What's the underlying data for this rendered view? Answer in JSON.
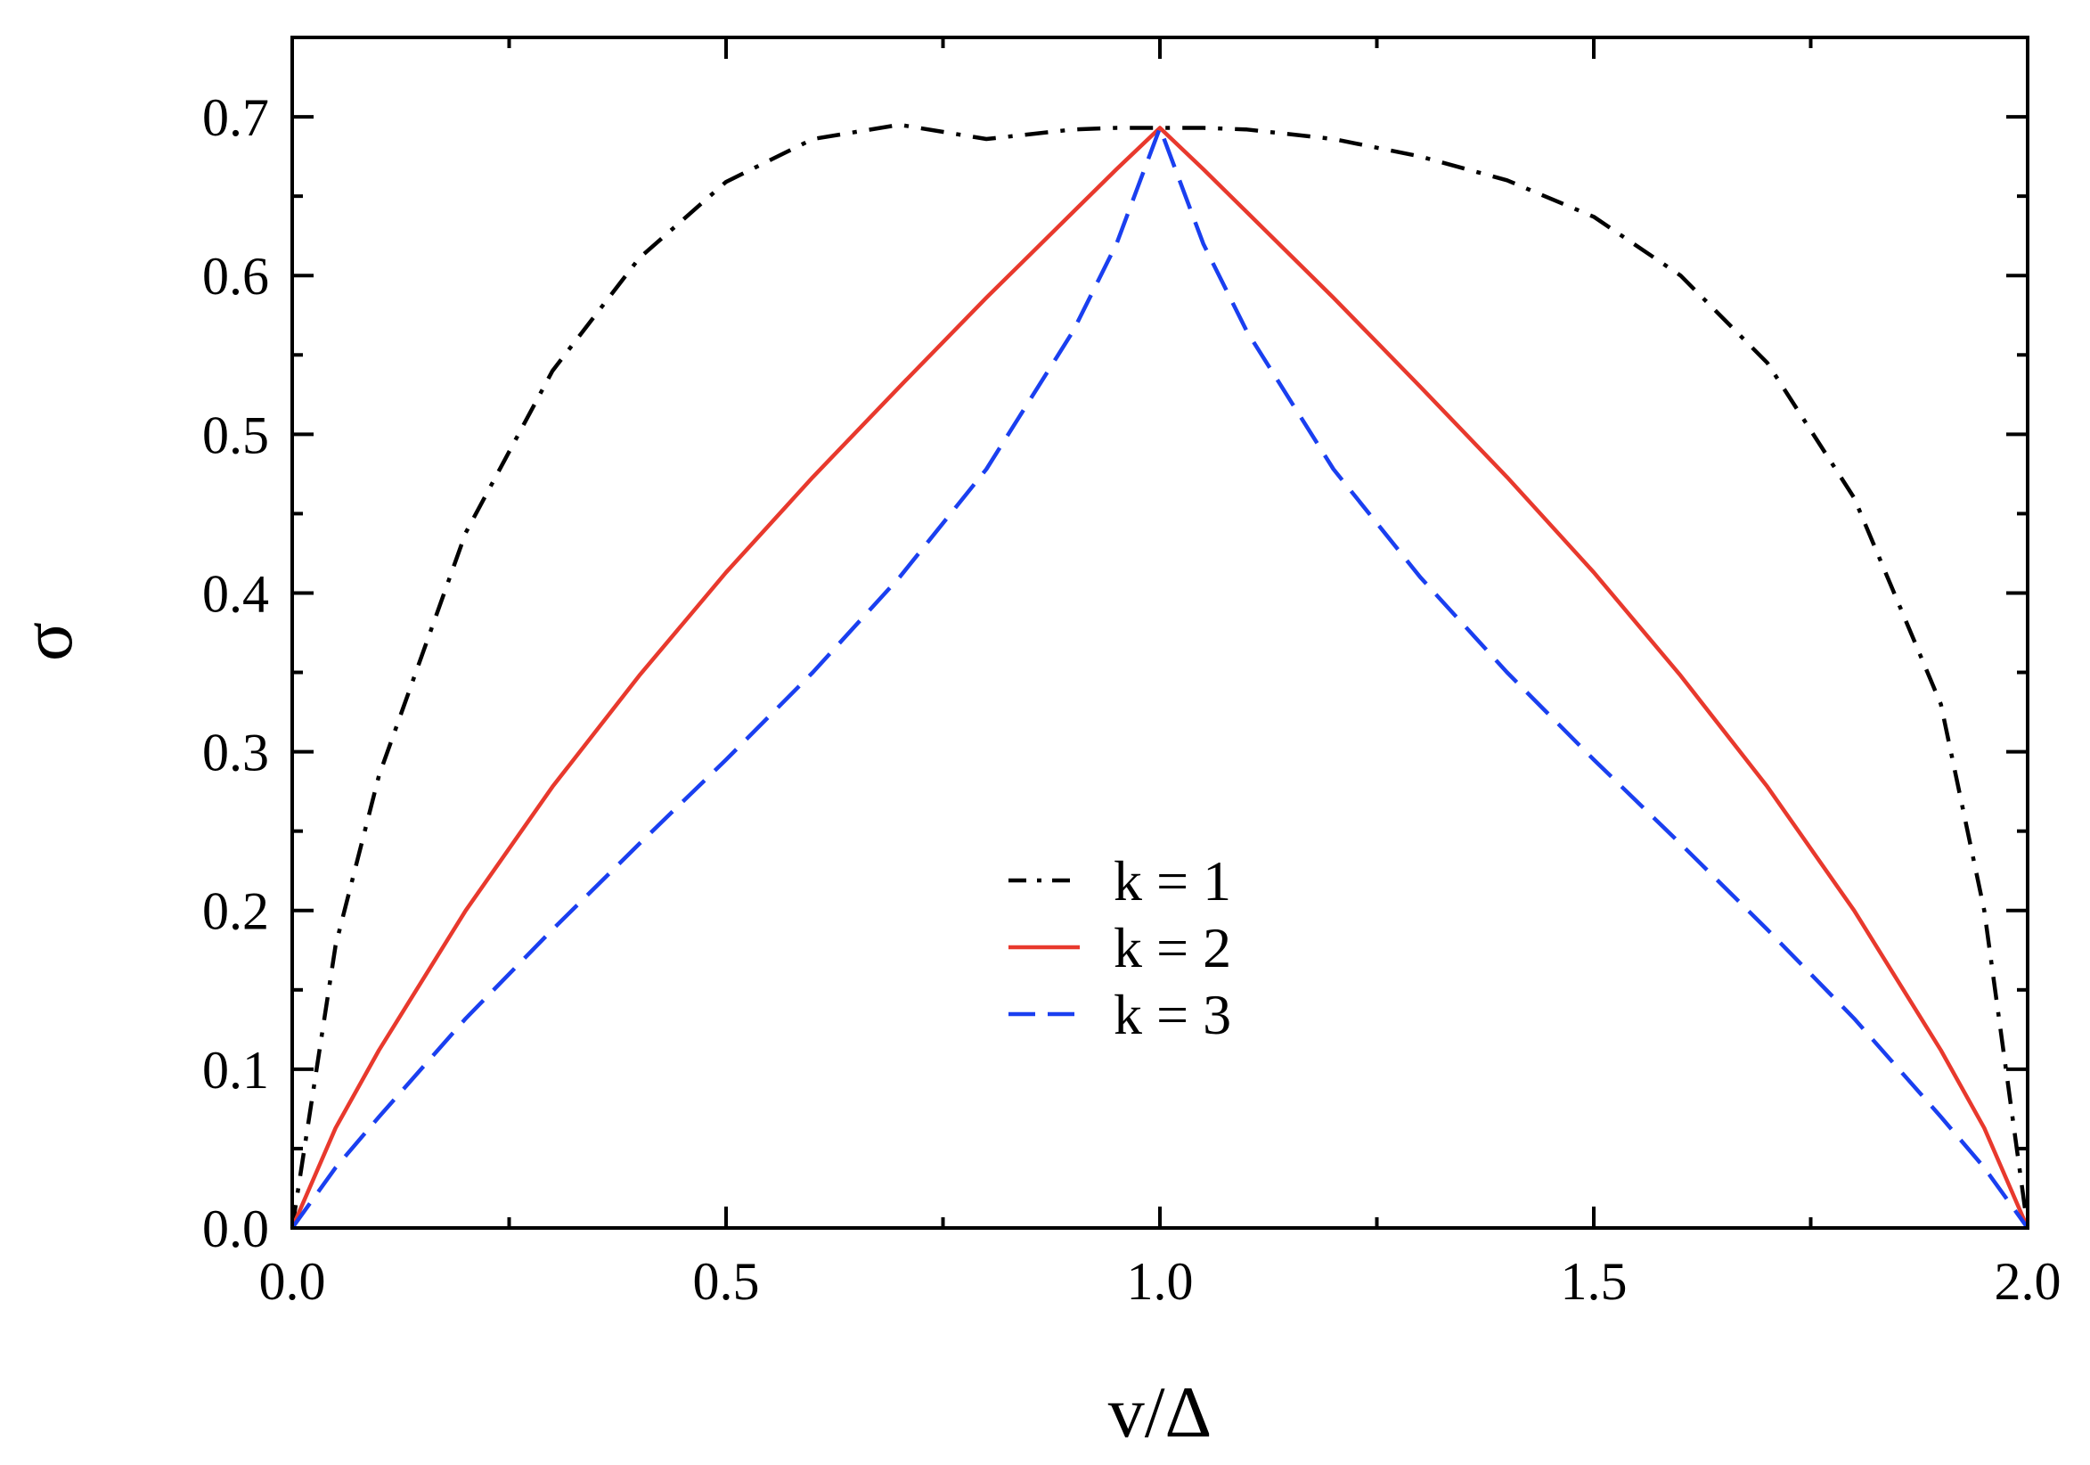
{
  "chart_data": {
    "type": "line",
    "title": "",
    "xlabel": "v/Δ",
    "ylabel": "σ",
    "xlim": [
      0.0,
      2.0
    ],
    "ylim": [
      0.0,
      0.75
    ],
    "xticks": [
      0.0,
      0.5,
      1.0,
      1.5,
      2.0
    ],
    "xtick_labels": [
      "0.0",
      "0.5",
      "1.0",
      "1.5",
      "2.0"
    ],
    "yticks": [
      0.0,
      0.1,
      0.2,
      0.3,
      0.4,
      0.5,
      0.6,
      0.7
    ],
    "ytick_labels": [
      "0.0",
      "0.1",
      "0.2",
      "0.3",
      "0.4",
      "0.5",
      "0.6",
      "0.7"
    ],
    "grid": false,
    "legend_position": "center-bottom",
    "x": [
      0.0,
      0.05,
      0.1,
      0.2,
      0.3,
      0.4,
      0.5,
      0.6,
      0.7,
      0.8,
      0.9,
      0.95,
      1.0,
      1.05,
      1.1,
      1.2,
      1.3,
      1.4,
      1.5,
      1.6,
      1.7,
      1.8,
      1.9,
      1.95,
      2.0
    ],
    "series": [
      {
        "name": "k = 1",
        "color": "#000000",
        "style": "dash-dot",
        "values": [
          0.0,
          0.178,
          0.285,
          0.438,
          0.54,
          0.611,
          0.659,
          0.686,
          0.695,
          0.686,
          0.692,
          0.693,
          0.693,
          0.693,
          0.692,
          0.686,
          0.675,
          0.66,
          0.637,
          0.6,
          0.545,
          0.46,
          0.33,
          0.2,
          0.0
        ]
      },
      {
        "name": "k = 2",
        "color": "#e8392d",
        "style": "solid",
        "values": [
          0.0,
          0.063,
          0.112,
          0.2,
          0.278,
          0.348,
          0.413,
          0.473,
          0.53,
          0.586,
          0.64,
          0.667,
          0.693,
          0.667,
          0.64,
          0.586,
          0.53,
          0.473,
          0.413,
          0.348,
          0.278,
          0.2,
          0.112,
          0.063,
          0.0
        ]
      },
      {
        "name": "k = 3",
        "color": "#1a3ff0",
        "style": "dashed",
        "values": [
          0.0,
          0.038,
          0.07,
          0.132,
          0.188,
          0.242,
          0.295,
          0.35,
          0.41,
          0.478,
          0.565,
          0.62,
          0.693,
          0.62,
          0.565,
          0.478,
          0.41,
          0.35,
          0.295,
          0.242,
          0.188,
          0.132,
          0.07,
          0.038,
          0.0
        ]
      }
    ]
  }
}
